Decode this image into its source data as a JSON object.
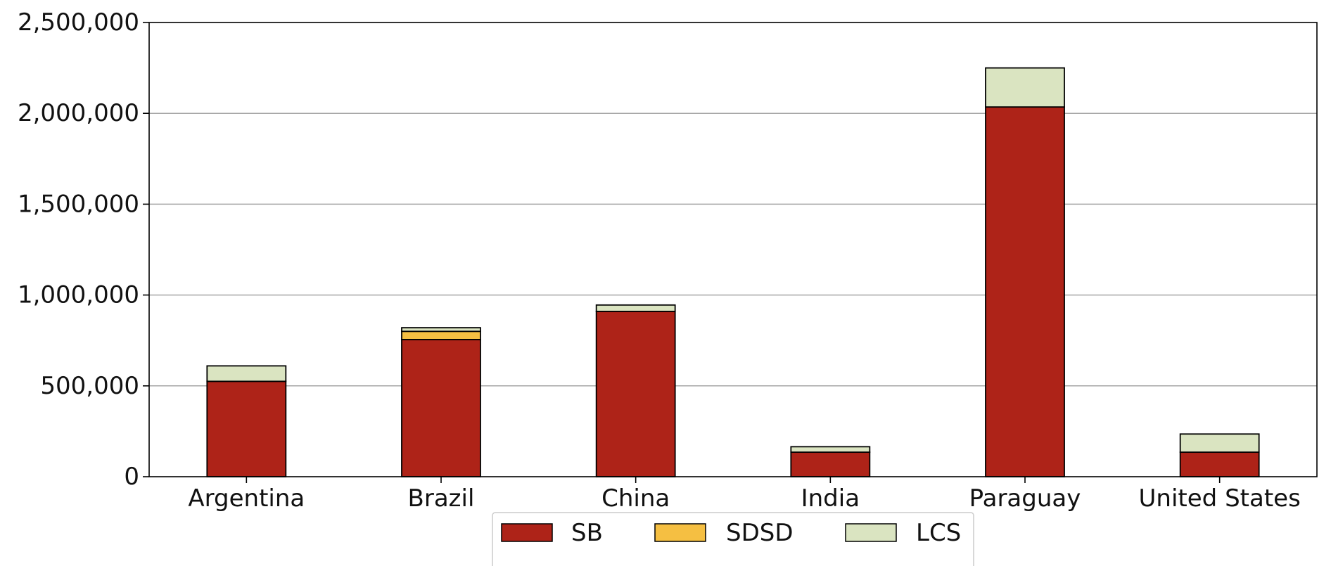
{
  "chart_data": {
    "type": "bar",
    "stacked": true,
    "categories": [
      "Argentina",
      "Brazil",
      "China",
      "India",
      "Paraguay",
      "United States"
    ],
    "series": [
      {
        "name": "SB",
        "values": [
          525000,
          755000,
          910000,
          135000,
          2035000,
          135000
        ],
        "color": "#ae2318"
      },
      {
        "name": "SDSD",
        "values": [
          0,
          45000,
          0,
          0,
          0,
          0
        ],
        "color": "#f5bf42"
      },
      {
        "name": "LCS",
        "values": [
          85000,
          20000,
          35000,
          30000,
          215000,
          100000
        ],
        "color": "#dae4c1"
      }
    ],
    "y_ticks": [
      "0",
      "500,000",
      "1,000,000",
      "1,500,000",
      "2,000,000",
      "2,500,000"
    ],
    "ylim": [
      0,
      2500000
    ],
    "grid": "horizontal",
    "legend_position": "bottom-center",
    "title": "",
    "xlabel": "",
    "ylabel": ""
  }
}
